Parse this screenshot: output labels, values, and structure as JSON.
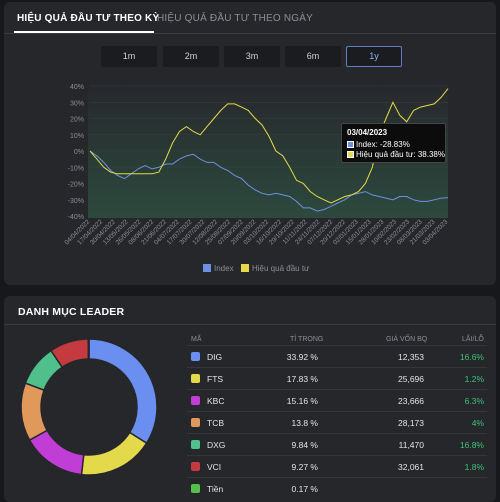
{
  "tabs": [
    "HIỆU QUẢ ĐẦU TƯ THEO KỲ",
    "HIỆU QUẢ ĐẦU TƯ THEO NGÀY"
  ],
  "periods": [
    "1m",
    "2m",
    "3m",
    "6m",
    "1y"
  ],
  "active_period": "1y",
  "tooltip": {
    "date": "03/04/2023",
    "index": "Index: -28.83%",
    "portfolio": "Hiệu quả đầu tư: 38.38%"
  },
  "legend": [
    "Index",
    "Hiệu quả đầu tư"
  ],
  "colors": {
    "index": "#6f90e0",
    "portfolio": "#e6d94a",
    "accent": "#5d7fc9",
    "positive": "#3ec37a"
  },
  "chart_data": {
    "type": "line",
    "ylim": [
      -40,
      40
    ],
    "yticks": [
      "40%",
      "30%",
      "20%",
      "10%",
      "0%",
      "-10%",
      "-20%",
      "-30%",
      "-40%"
    ],
    "x_labels": [
      "04/04/2022",
      "17/04/2022",
      "30/04/2022",
      "13/05/2022",
      "26/05/2022",
      "08/06/2022",
      "21/06/2022",
      "04/07/2022",
      "17/07/2022",
      "30/07/2022",
      "12/08/2022",
      "25/08/2022",
      "07/09/2022",
      "20/09/2022",
      "03/10/2022",
      "16/10/2022",
      "29/10/2022",
      "11/11/2022",
      "24/11/2022",
      "07/12/2022",
      "20/12/2022",
      "02/01/2023",
      "15/01/2023",
      "28/01/2023",
      "10/02/2023",
      "23/02/2023",
      "08/03/2023",
      "21/03/2023",
      "03/04/2023"
    ],
    "series": [
      {
        "name": "Index",
        "values": [
          0,
          -3,
          -7,
          -12,
          -15,
          -17,
          -14,
          -11,
          -9,
          -11,
          -10,
          -8,
          -8,
          -5,
          -3,
          -2,
          -5,
          -7,
          -7,
          -10,
          -12,
          -15,
          -17,
          -21,
          -24,
          -26,
          -27,
          -26,
          -27,
          -28,
          -31,
          -35,
          -35,
          -37,
          -36,
          -34,
          -32,
          -30,
          -27,
          -26,
          -25,
          -27,
          -28,
          -29,
          -30,
          -28,
          -28,
          -30,
          -31,
          -31,
          -30,
          -29,
          -28.83
        ]
      },
      {
        "name": "Hiệu quả đầu tư",
        "values": [
          0,
          -5,
          -10,
          -13,
          -14,
          -14,
          -14,
          -14,
          -14,
          -14,
          -13,
          -5,
          5,
          12,
          15,
          12,
          10,
          15,
          20,
          25,
          29,
          29,
          27,
          25,
          20,
          16,
          9,
          0,
          -3,
          -10,
          -18,
          -20,
          -25,
          -28,
          -30,
          -32,
          -30,
          -28,
          -27,
          -25,
          -20,
          -10,
          10,
          20,
          30,
          22,
          18,
          25,
          27,
          28,
          29,
          33,
          38.38
        ]
      }
    ]
  },
  "portfolio": {
    "title": "DANH MỤC LEADER",
    "headers": [
      "MÃ",
      "TỈ TRỌNG",
      "GIÁ VỐN BQ",
      "LÃI/LỖ"
    ],
    "rows": [
      {
        "code": "DIG",
        "weight": "33.92  %",
        "cost": "12,353",
        "pl": "16.6%",
        "color": "#6a8ff0",
        "pct": 33.92
      },
      {
        "code": "FTS",
        "weight": "17.83  %",
        "cost": "25,696",
        "pl": "1.2%",
        "color": "#e4d94a",
        "pct": 17.83
      },
      {
        "code": "KBC",
        "weight": "15.16  %",
        "cost": "23,666",
        "pl": "6.3%",
        "color": "#c03ed6",
        "pct": 15.16
      },
      {
        "code": "TCB",
        "weight": "13.8  %",
        "cost": "28,173",
        "pl": "4%",
        "color": "#e0995a",
        "pct": 13.8
      },
      {
        "code": "DXG",
        "weight": "9.84  %",
        "cost": "11,470",
        "pl": "16.8%",
        "color": "#4fbf8c",
        "pct": 9.84
      },
      {
        "code": "VCI",
        "weight": "9.27  %",
        "cost": "32,061",
        "pl": "1.8%",
        "color": "#c53a3f",
        "pct": 9.27
      },
      {
        "code": "Tiền",
        "weight": "0.17  %",
        "cost": "",
        "pl": "",
        "color": "#56c14a",
        "pct": 0.17
      }
    ]
  }
}
